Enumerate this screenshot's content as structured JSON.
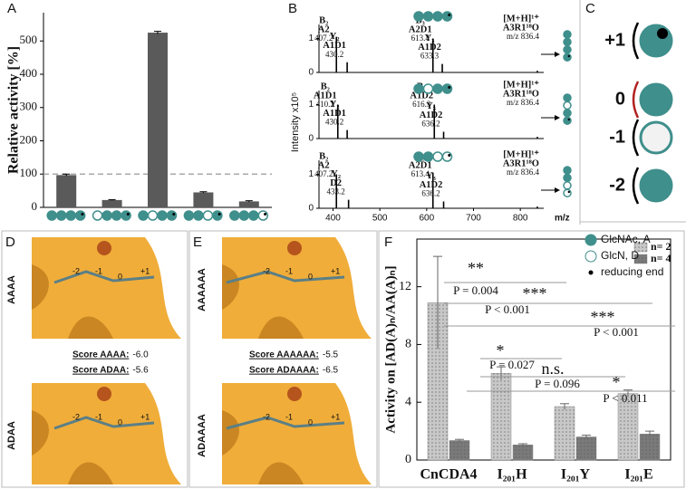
{
  "chart_data": [
    {
      "type": "bar",
      "panel": "A",
      "ylabel": "Relative activity [%]",
      "categories": [
        null,
        null,
        null,
        null,
        null
      ],
      "values": [
        97,
        22,
        525,
        45,
        18
      ],
      "errors": [
        3,
        1,
        4,
        2,
        2
      ],
      "color": "#5a5a5a",
      "reference_line": 100,
      "ylim": [
        0,
        585
      ],
      "yticks": [
        0,
        100,
        200,
        300,
        400,
        500
      ]
    },
    {
      "type": "spectrum",
      "panel": "B",
      "x": [
        407.2,
        430.2,
        613.4,
        633.3,
        836.4
      ],
      "values": [
        1.05,
        0.3,
        1.0,
        0.25,
        0.05
      ],
      "peak_labels": [
        [
          "B₂",
          "A2",
          "407.2"
        ],
        [
          "Y₂",
          "A1D1",
          "430.2"
        ],
        [
          "B₃",
          "A2D1",
          "613.4"
        ],
        [
          "Y₃",
          "A1D2",
          "633.3"
        ],
        [
          "[M+H]¹⁺",
          "A3R1¹⁸O",
          "m/z 836.4"
        ]
      ],
      "color": "#000000",
      "highlight_color": "#b22222",
      "xlim": [
        370,
        850
      ],
      "ylim": [
        0,
        1.2
      ],
      "yticks": [
        0,
        1
      ]
    },
    {
      "type": "spectrum",
      "ylabel": "Intensity x10⁵",
      "x": [
        410.2,
        430.2,
        616.3,
        636.2,
        836.4
      ],
      "values": [
        1.0,
        0.25,
        1.0,
        0.2,
        0.05
      ],
      "peak_labels": [
        [
          "B₂",
          "A1D1",
          "410.2"
        ],
        [
          "Y₂",
          "A1D1",
          "430.2"
        ],
        [
          "B₃",
          "A1D2",
          "616.3"
        ],
        [
          "Y₃",
          "A1D2",
          "636.2"
        ],
        [
          "[M+H]¹⁺",
          "A3R1¹⁸O",
          "m/z 836.4"
        ]
      ],
      "color": "#000000",
      "highlight_color": "#b22222",
      "xlim": [
        370,
        850
      ],
      "ylim": [
        0,
        1.2
      ],
      "yticks": [
        0,
        1
      ]
    },
    {
      "type": "spectrum",
      "xlabel": "m/z",
      "x": [
        407.2,
        433.2,
        613.4,
        636.2,
        836.4
      ],
      "values": [
        1.0,
        0.25,
        1.05,
        0.2,
        0.05
      ],
      "peak_labels": [
        [
          "B₂",
          "A2",
          "407.2"
        ],
        [
          "Y₂",
          "D2",
          "433.2"
        ],
        [
          "B₃",
          "A2D1",
          "613.4"
        ],
        [
          "Y₃",
          "A1D2",
          "636.2"
        ],
        [
          "[M+H]¹⁺",
          "A3R1¹⁸O",
          "m/z 836.4"
        ]
      ],
      "color": "#000000",
      "highlight_color": "#b22222",
      "xlim": [
        370,
        850
      ],
      "ylim": [
        0,
        1.2
      ],
      "yticks": [
        0,
        1
      ],
      "xticks": [
        400,
        500,
        600,
        700,
        800
      ]
    },
    {
      "type": "grouped_bar",
      "panel": "F",
      "ylabel": "Activity on [AD(A)ₙ/AA(A)ₙ]",
      "categories": [
        "CnCDA4",
        "I₂₀₁H",
        "I₂₀₁Y",
        "I₂₀₁E"
      ],
      "series": [
        {
          "name": "n= 2",
          "color": "#c8c8c8",
          "values": [
            10.9,
            6.0,
            3.7,
            4.6
          ],
          "errors": [
            3.2,
            0.45,
            0.2,
            0.25
          ]
        },
        {
          "name": "n= 4",
          "color": "#7a7a7a",
          "values": [
            1.35,
            1.05,
            1.6,
            1.8
          ],
          "errors": [
            0.08,
            0.08,
            0.12,
            0.2
          ]
        }
      ],
      "ylim": [
        0,
        15.3
      ],
      "yticks": [
        0,
        4,
        8,
        12
      ],
      "legend": "upper right",
      "annotation_color": "#b22222",
      "annotations": [
        {
          "label": "**",
          "text": "P = 0.004"
        },
        {
          "label": "***",
          "text": "P < 0.001"
        },
        {
          "label": "***",
          "text": "P < 0.001"
        },
        {
          "label": "*",
          "text": "P = 0.027"
        },
        {
          "label": "n.s.",
          "text": "P = 0.096"
        },
        {
          "label": "*",
          "text": "P < 0.011"
        }
      ]
    }
  ],
  "panels": {
    "C": {
      "letter": "C",
      "sites": [
        "+1",
        "0",
        "-1",
        "-2"
      ],
      "legend": [
        "GlcNAc, A",
        "GlcN, D",
        "reducing end"
      ]
    },
    "D": {
      "letter": "D",
      "docks": [
        {
          "name": "AAAA",
          "score_label": "Score AAAA:",
          "score": "-6.0"
        },
        {
          "name": "ADAA",
          "score_label": "Score ADAA:",
          "score": "-5.6"
        }
      ]
    },
    "E": {
      "letter": "E",
      "docks": [
        {
          "name": "AAAAAA",
          "score_label": "Score AAAAAA:",
          "score": "-5.5"
        },
        {
          "name": "ADAAAA",
          "score_label": "Score ADAAAA:",
          "score": "-6.5"
        }
      ]
    },
    "sites": [
      "-2",
      "-1",
      "0",
      "+1"
    ]
  }
}
